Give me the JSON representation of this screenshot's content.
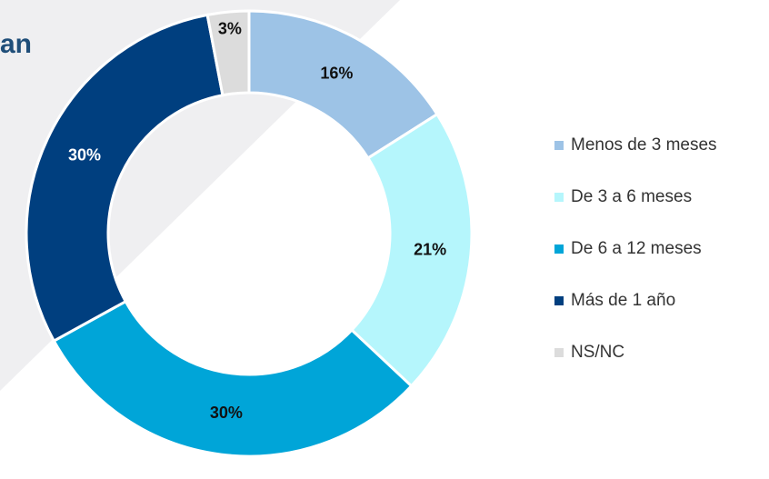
{
  "chart_data": {
    "type": "donut",
    "title": "an",
    "categories": [
      "Menos de 3 meses",
      "De 3 a 6 meses",
      "De 6 a 12 meses",
      "Más de 1 año",
      "NS/NC"
    ],
    "values": [
      16,
      21,
      30,
      30,
      3
    ],
    "value_labels": [
      "16%",
      "21%",
      "30%",
      "30%",
      "3%"
    ],
    "colors": [
      "#9dc3e6",
      "#b5f6fc",
      "#00a5d8",
      "#003f7f",
      "#dcdcdc"
    ],
    "legend": "right"
  }
}
